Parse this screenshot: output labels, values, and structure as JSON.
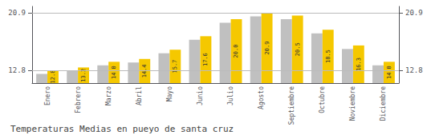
{
  "chart_data": {
    "type": "bar",
    "title": "Temperaturas Medias en pueyo de santa cruz",
    "categories": [
      "Enero",
      "Febrero",
      "Marzo",
      "Abril",
      "Mayo",
      "Junio",
      "Julio",
      "Agosto",
      "Septiembre",
      "Octubre",
      "Noviembre",
      "Diciembre"
    ],
    "series": [
      {
        "color": "#C0C0C0",
        "values": [
          12.3,
          12.7,
          13.5,
          13.9,
          15.2,
          17.1,
          19.5,
          20.4,
          20.0,
          18.0,
          15.8,
          13.5
        ]
      },
      {
        "color": "#F5C800",
        "values": [
          12.8,
          13.2,
          14.0,
          14.4,
          15.7,
          17.6,
          20.0,
          20.9,
          20.5,
          18.5,
          16.3,
          14.0
        ],
        "value_labels": [
          "12.8",
          "13.2",
          "14.0",
          "14.4",
          "15.7",
          "17.6",
          "20.0",
          "20.9",
          "20.5",
          "18.5",
          "16.3",
          "14.0"
        ],
        "data_labels": true
      }
    ],
    "ylim": [
      11.0,
      21.8
    ],
    "yticks": [
      12.8,
      20.9
    ],
    "y2lim": [
      11.0,
      21.8
    ],
    "y2ticks": [
      12.8,
      20.9
    ],
    "grid": true
  }
}
